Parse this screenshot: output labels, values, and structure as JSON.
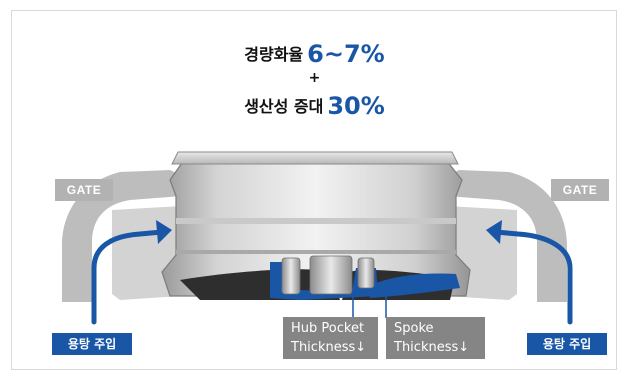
{
  "headline": {
    "line1_text": "경량화율",
    "line1_value": "6~7%",
    "plus": "+",
    "line2_text": "생산성 증대",
    "line2_value": "30%"
  },
  "labels": {
    "gate_left": "GATE",
    "gate_right": "GATE",
    "inject_left": "용탕 주입",
    "inject_right": "용탕 주입",
    "hub_line1": "Hub Pocket",
    "hub_line2": "Thickness↓",
    "spoke_line1": "Spoke",
    "spoke_line2": "Thickness↓"
  },
  "colors": {
    "accent_blue": "#1a56a6",
    "gate_gray": "#b2b2b2",
    "mold_gray": "#bdbdbd",
    "label_gray": "#858585"
  }
}
